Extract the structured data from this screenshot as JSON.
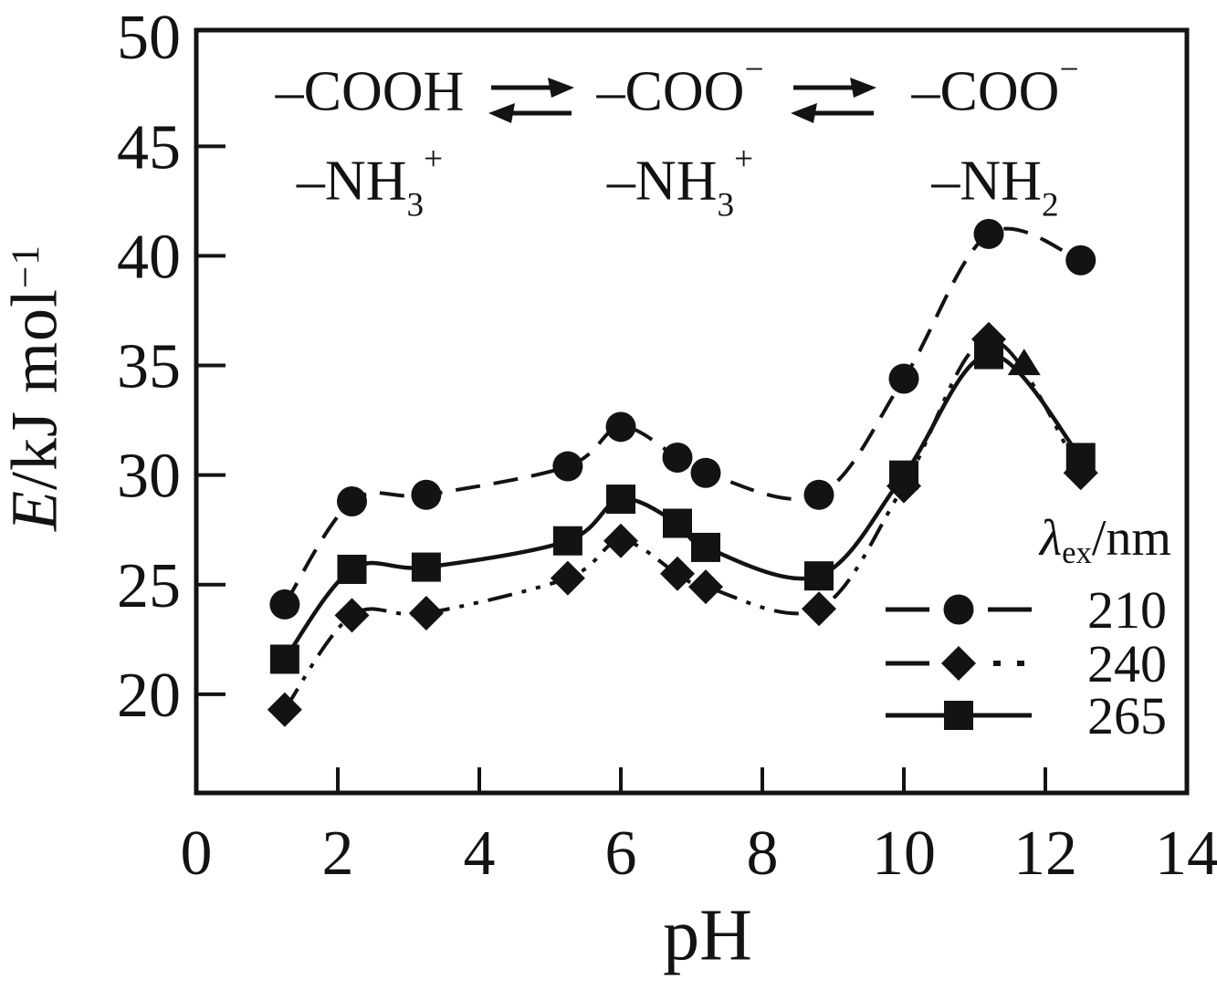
{
  "chart_data": {
    "type": "line",
    "xlabel": "pH",
    "ylabel_italic": "E",
    "ylabel_rest": "/kJ mol",
    "ylabel_sup": "−1",
    "xlim": [
      0,
      14
    ],
    "ylim": [
      15.5,
      50.3
    ],
    "xticks": [
      0,
      2,
      4,
      6,
      8,
      10,
      12,
      14
    ],
    "yticks": [
      20,
      25,
      30,
      35,
      40,
      45,
      50
    ],
    "grid": false,
    "x": [
      1.25,
      2.2,
      3.25,
      5.25,
      6.0,
      6.8,
      7.2,
      8.8,
      10.0,
      11.2,
      12.5
    ],
    "series": [
      {
        "name": "210",
        "marker": "circle",
        "line": "dashed",
        "values": [
          24.1,
          28.8,
          29.1,
          30.4,
          32.2,
          30.8,
          30.1,
          29.1,
          34.4,
          41.0,
          39.8
        ]
      },
      {
        "name": "240",
        "marker": "diamond",
        "line": "dash-dot-dot",
        "values": [
          19.3,
          23.6,
          23.7,
          25.3,
          27.0,
          25.5,
          24.9,
          23.9,
          29.5,
          36.2,
          30.1
        ]
      },
      {
        "name": "265",
        "marker": "square",
        "line": "solid",
        "values": [
          21.6,
          25.7,
          25.8,
          27.0,
          28.9,
          27.8,
          26.7,
          25.4,
          30.0,
          35.5,
          30.8
        ]
      }
    ],
    "extra_markers": [
      {
        "marker": "triangle-up",
        "x": 11.7,
        "y": 35.1
      }
    ],
    "legend": {
      "title_lambda": "λ",
      "title_sub": "ex",
      "title_rest": "/nm",
      "position": "lower right"
    },
    "line_color": "#131313"
  },
  "annotation": {
    "arrow_type": "equilibrium",
    "groups": [
      {
        "top_main": "–COOH",
        "top_sup": "",
        "bottom_main": "–NH",
        "bottom_sub": "3",
        "bottom_sup": "+"
      },
      {
        "top_main": "–COO",
        "top_sup": "−",
        "bottom_main": "–NH",
        "bottom_sub": "3",
        "bottom_sup": "+"
      },
      {
        "top_main": "–COO",
        "top_sup": "−",
        "bottom_main": "–NH",
        "bottom_sub": "2",
        "bottom_sup": ""
      }
    ]
  }
}
